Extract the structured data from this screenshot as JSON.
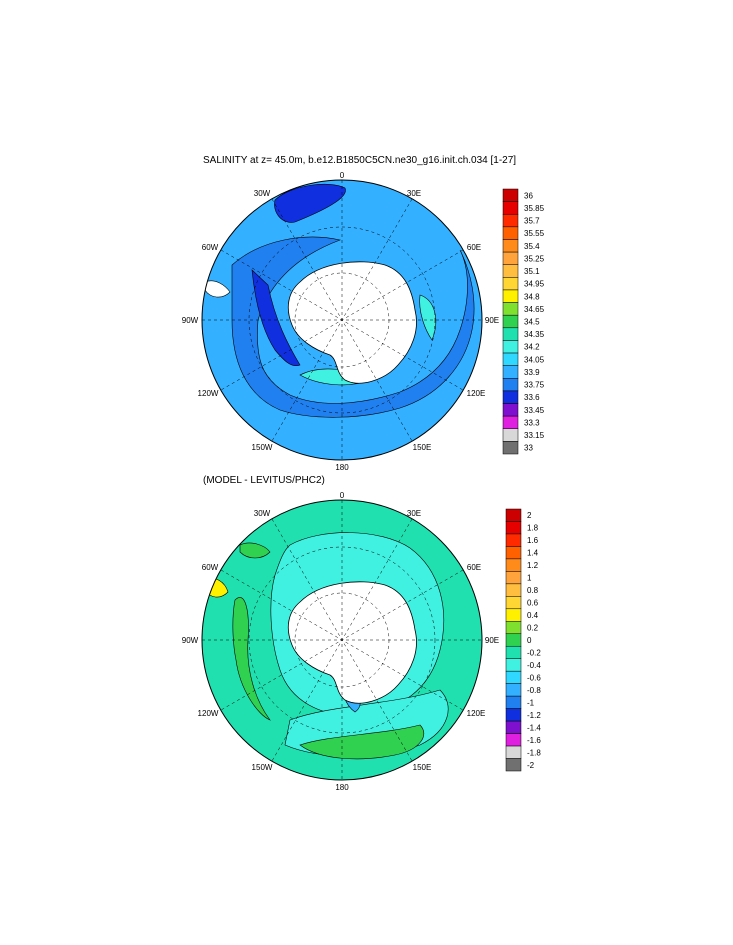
{
  "panels": [
    {
      "title": "SALINITY at z=  45.0m, b.e12.B1850C5CN.ne30_g16.init.ch.034 [1-27]",
      "lon_labels": {
        "top": "0",
        "top_right": "30E",
        "right_upper": "60E",
        "right": "90E",
        "right_lower": "120E",
        "bottom_right": "150E",
        "bottom": "180",
        "bottom_left": "150W",
        "left_lower": "120W",
        "left": "90W",
        "left_upper": "60W",
        "top_left": "30W"
      },
      "colorbar": {
        "labels": [
          "36",
          "35.85",
          "35.7",
          "35.55",
          "35.4",
          "35.25",
          "35.1",
          "34.95",
          "34.8",
          "34.65",
          "34.5",
          "34.35",
          "34.2",
          "34.05",
          "33.9",
          "33.75",
          "33.6",
          "33.45",
          "33.3",
          "33.15",
          "33"
        ],
        "colors": [
          "#cc0000",
          "#e60000",
          "#ff2a00",
          "#ff6000",
          "#ff8c1a",
          "#ffa43d",
          "#ffbe40",
          "#ffd633",
          "#fff000",
          "#80e030",
          "#30d050",
          "#20e0b0",
          "#40f0e0",
          "#30d8ff",
          "#33b0ff",
          "#2080f0",
          "#1030e0",
          "#8010d0",
          "#e020e0",
          "#d8d8d8",
          "#707070"
        ]
      }
    },
    {
      "title": "(MODEL - LEVITUS/PHC2)",
      "lon_labels": {
        "top": "0",
        "top_right": "30E",
        "right_upper": "60E",
        "right": "90E",
        "right_lower": "120E",
        "bottom_right": "150E",
        "bottom": "180",
        "bottom_left": "150W",
        "left_lower": "120W",
        "left": "90W",
        "left_upper": "60W",
        "top_left": "30W"
      },
      "colorbar": {
        "labels": [
          "2",
          "1.8",
          "1.6",
          "1.4",
          "1.2",
          "1",
          "0.8",
          "0.6",
          "0.4",
          "0.2",
          "0",
          "-0.2",
          "-0.4",
          "-0.6",
          "-0.8",
          "-1",
          "-1.2",
          "-1.4",
          "-1.6",
          "-1.8",
          "-2"
        ],
        "colors": [
          "#cc0000",
          "#e60000",
          "#ff2a00",
          "#ff6000",
          "#ff8c1a",
          "#ffa43d",
          "#ffbe40",
          "#ffd633",
          "#fff000",
          "#80e030",
          "#30d050",
          "#20e0b0",
          "#40f0e0",
          "#30d8ff",
          "#33b0ff",
          "#2080f0",
          "#1030e0",
          "#8010d0",
          "#e020e0",
          "#d8d8d8",
          "#707070"
        ]
      }
    }
  ]
}
